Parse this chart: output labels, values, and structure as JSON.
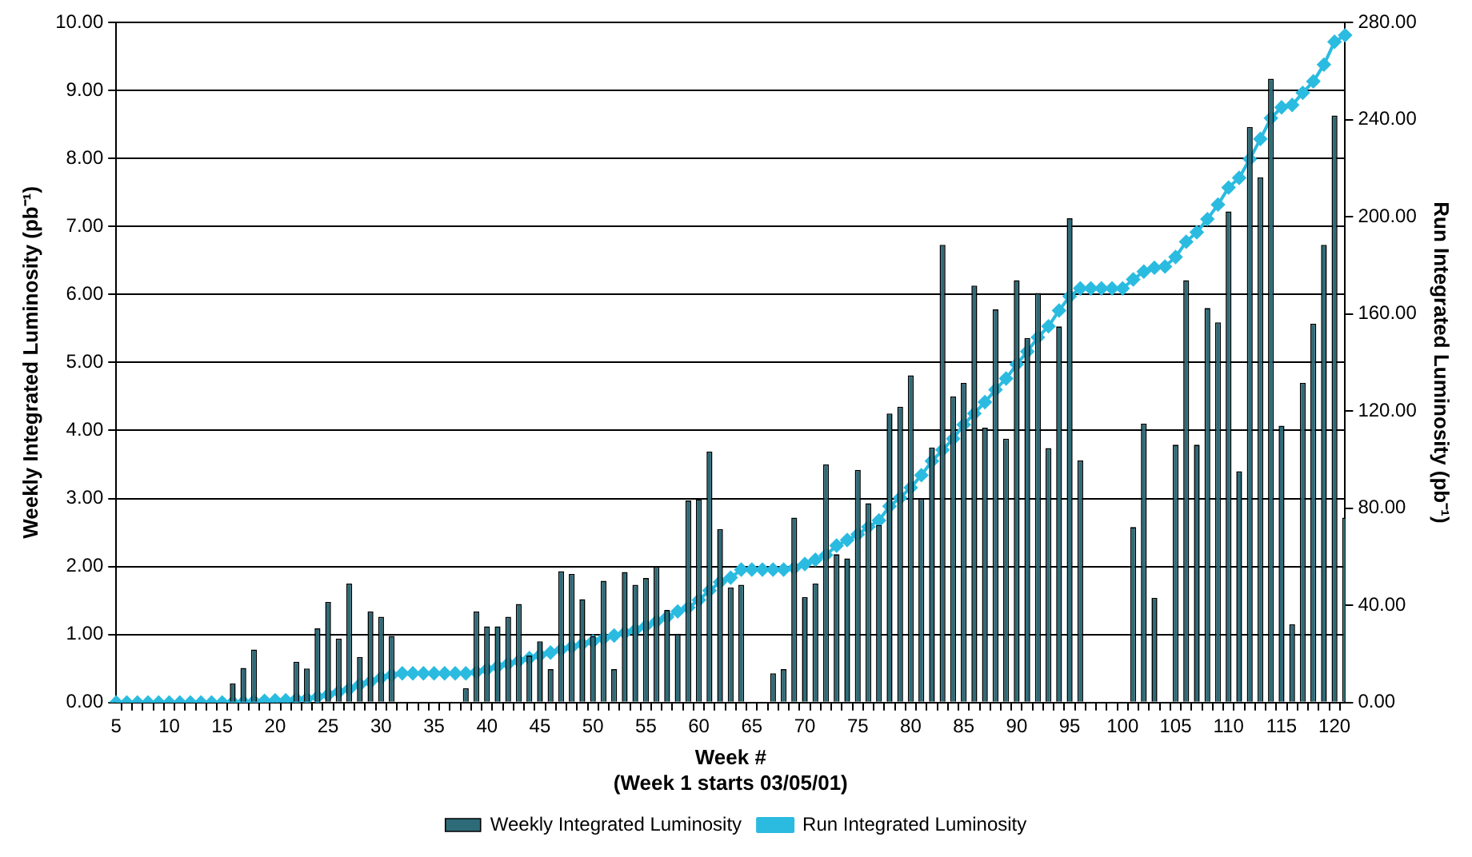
{
  "chart_data": {
    "type": "bar",
    "xlabel": "Week #\n(Week 1 starts 03/05/01)",
    "ylabel": "Weekly Integrated Luminosity (pb⁻¹)",
    "y2label": "Run Integrated Luminosity (pb⁻¹)",
    "categories": [
      "5",
      null,
      null,
      null,
      null,
      "10",
      null,
      null,
      null,
      null,
      "15",
      null,
      null,
      null,
      null,
      "20",
      null,
      null,
      null,
      null,
      "25",
      null,
      null,
      null,
      null,
      "30",
      null,
      null,
      null,
      null,
      "35",
      null,
      null,
      null,
      null,
      "40",
      null,
      null,
      null,
      null,
      "45",
      null,
      null,
      null,
      null,
      "50",
      null,
      null,
      null,
      null,
      "55",
      null,
      null,
      null,
      null,
      "60",
      null,
      null,
      null,
      null,
      "65",
      null,
      null,
      null,
      null,
      "70",
      null,
      null,
      null,
      null,
      "75",
      null,
      null,
      null,
      null,
      "80",
      null,
      null,
      null,
      null,
      "85",
      null,
      null,
      null,
      null,
      "90",
      null,
      null,
      null,
      null,
      "95",
      null,
      null,
      null,
      null,
      "100",
      null,
      null,
      null,
      null,
      "105",
      null,
      null,
      null,
      null,
      "110",
      null,
      null,
      null,
      null,
      "115",
      null,
      null,
      null,
      null,
      "120",
      null
    ],
    "series": [
      {
        "name": "Weekly Integrated Luminosity",
        "color": "#2e6b78",
        "values": [
          0,
          0,
          0,
          0,
          0,
          0,
          0,
          0,
          0,
          0,
          0,
          0.28,
          0.51,
          0.78,
          0,
          0,
          0,
          0.6,
          0.5,
          1.09,
          1.48,
          0.94,
          1.75,
          0.67,
          1.34,
          1.26,
          0.98,
          0,
          0,
          0,
          0,
          0,
          0,
          0.21,
          1.34,
          1.12,
          1.12,
          1.26,
          1.45,
          0.69,
          0.9,
          0.49,
          1.93,
          1.89,
          1.52,
          0.98,
          1.79,
          0.49,
          1.92,
          1.73,
          1.83,
          2,
          1.36,
          1.01,
          2.97,
          2.99,
          3.69,
          2.55,
          1.69,
          1.73,
          0,
          0,
          0.43,
          0.49,
          2.72,
          1.55,
          1.75,
          3.5,
          2.18,
          2.12,
          3.42,
          2.93,
          2.61,
          4.25,
          4.35,
          4.81,
          3,
          3.75,
          6.73,
          4.5,
          4.7,
          6.13,
          4.04,
          5.78,
          3.88,
          6.21,
          5.36,
          6.02,
          3.74,
          5.53,
          7.12,
          3.56,
          0,
          0,
          0,
          0,
          2.58,
          4.1,
          1.54,
          0,
          3.79,
          6.21,
          3.79,
          5.8,
          5.59,
          7.22,
          3.4,
          8.46,
          7.72,
          9.17,
          4.07,
          1.15,
          4.7,
          5.57,
          6.73,
          8.63,
          2.72
        ]
      },
      {
        "name": "Run Integrated Luminosity",
        "type": "line",
        "axis": "y2",
        "color": "#2bbbe0",
        "marker": "diamond",
        "values": [
          0,
          0,
          0,
          0,
          0,
          0,
          0,
          0,
          0,
          0,
          0,
          0.1,
          0.2,
          0.5,
          0.7,
          0.9,
          0.9,
          1.4,
          1.6,
          2.3,
          3.2,
          4.4,
          5.6,
          7.4,
          8.6,
          10.2,
          11.3,
          12,
          12,
          12,
          12,
          12,
          12,
          12,
          12.5,
          13.7,
          14.8,
          16,
          17.1,
          18.3,
          19.5,
          20.6,
          21.8,
          22.9,
          24.1,
          25.2,
          26.4,
          27.6,
          28.7,
          29.9,
          31.5,
          33.4,
          35.2,
          37.5,
          39.1,
          42.2,
          46.1,
          49.6,
          51.4,
          54.7,
          54.7,
          54.7,
          54.7,
          54.7,
          55.4,
          57,
          58.8,
          60.7,
          64.6,
          66.9,
          69.2,
          72.3,
          75,
          80.8,
          84.3,
          88.5,
          93.6,
          99.4,
          104,
          108.6,
          114.4,
          119,
          123.7,
          128.8,
          133.4,
          139.2,
          144.5,
          150.3,
          154.9,
          161.4,
          167.2,
          170.5,
          170.5,
          170.5,
          170.5,
          170.5,
          174.2,
          177.4,
          179,
          179.5,
          183.4,
          189.7,
          193.6,
          199,
          205,
          212,
          216,
          223.7,
          232,
          240.6,
          245,
          246,
          251,
          255.7,
          262.6,
          272,
          274.7
        ]
      }
    ],
    "ylim": [
      0,
      10
    ],
    "yticks": [
      {
        "value": 0,
        "label": "0.00"
      },
      {
        "value": 1,
        "label": "1.00"
      },
      {
        "value": 2,
        "label": "2.00"
      },
      {
        "value": 3,
        "label": "3.00"
      },
      {
        "value": 4,
        "label": "4.00"
      },
      {
        "value": 5,
        "label": "5.00"
      },
      {
        "value": 6,
        "label": "6.00"
      },
      {
        "value": 7,
        "label": "7.00"
      },
      {
        "value": 8,
        "label": "8.00"
      },
      {
        "value": 9,
        "label": "9.00"
      },
      {
        "value": 10,
        "label": "10.00"
      }
    ],
    "y2lim": [
      0,
      280
    ],
    "y2ticks": [
      {
        "value": 0,
        "label": "0.00"
      },
      {
        "value": 40,
        "label": "40.00"
      },
      {
        "value": 80,
        "label": "80.00"
      },
      {
        "value": 120,
        "label": "120.00"
      },
      {
        "value": 160,
        "label": "160.00"
      },
      {
        "value": 200,
        "label": "200.00"
      },
      {
        "value": 240,
        "label": "240.00"
      },
      {
        "value": 280,
        "label": "280.00"
      }
    ],
    "grid": "y",
    "legend": "bottom"
  }
}
